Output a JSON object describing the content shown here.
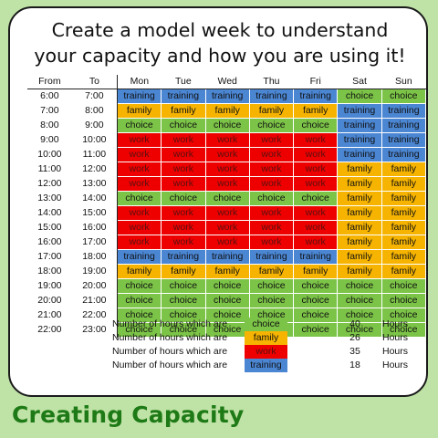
{
  "headline": {
    "line1": "Create a model week to understand",
    "line2": "your capacity and how you are using it!"
  },
  "table": {
    "headers": [
      "From",
      "To",
      "Mon",
      "Tue",
      "Wed",
      "Thu",
      "Fri",
      "Sat",
      "Sun"
    ],
    "rows": [
      {
        "from": "6:00",
        "to": "7:00",
        "days": [
          "training",
          "training",
          "training",
          "training",
          "training",
          "choice",
          "choice"
        ]
      },
      {
        "from": "7:00",
        "to": "8:00",
        "days": [
          "family",
          "family",
          "family",
          "family",
          "family",
          "training",
          "training"
        ]
      },
      {
        "from": "8:00",
        "to": "9:00",
        "days": [
          "choice",
          "choice",
          "choice",
          "choice",
          "choice",
          "training",
          "training"
        ]
      },
      {
        "from": "9:00",
        "to": "10:00",
        "days": [
          "work",
          "work",
          "work",
          "work",
          "work",
          "training",
          "training"
        ]
      },
      {
        "from": "10:00",
        "to": "11:00",
        "days": [
          "work",
          "work",
          "work",
          "work",
          "work",
          "training",
          "training"
        ]
      },
      {
        "from": "11:00",
        "to": "12:00",
        "days": [
          "work",
          "work",
          "work",
          "work",
          "work",
          "family",
          "family"
        ]
      },
      {
        "from": "12:00",
        "to": "13:00",
        "days": [
          "work",
          "work",
          "work",
          "work",
          "work",
          "family",
          "family"
        ]
      },
      {
        "from": "13:00",
        "to": "14:00",
        "days": [
          "choice",
          "choice",
          "choice",
          "choice",
          "choice",
          "family",
          "family"
        ]
      },
      {
        "from": "14:00",
        "to": "15:00",
        "days": [
          "work",
          "work",
          "work",
          "work",
          "work",
          "family",
          "family"
        ]
      },
      {
        "from": "15:00",
        "to": "16:00",
        "days": [
          "work",
          "work",
          "work",
          "work",
          "work",
          "family",
          "family"
        ]
      },
      {
        "from": "16:00",
        "to": "17:00",
        "days": [
          "work",
          "work",
          "work",
          "work",
          "work",
          "family",
          "family"
        ]
      },
      {
        "from": "17:00",
        "to": "18:00",
        "days": [
          "training",
          "training",
          "training",
          "training",
          "training",
          "family",
          "family"
        ]
      },
      {
        "from": "18:00",
        "to": "19:00",
        "days": [
          "family",
          "family",
          "family",
          "family",
          "family",
          "family",
          "family"
        ]
      },
      {
        "from": "19:00",
        "to": "20:00",
        "days": [
          "choice",
          "choice",
          "choice",
          "choice",
          "choice",
          "choice",
          "choice"
        ]
      },
      {
        "from": "20:00",
        "to": "21:00",
        "days": [
          "choice",
          "choice",
          "choice",
          "choice",
          "choice",
          "choice",
          "choice"
        ]
      },
      {
        "from": "21:00",
        "to": "22:00",
        "days": [
          "choice",
          "choice",
          "choice",
          "choice",
          "choice",
          "choice",
          "choice"
        ]
      },
      {
        "from": "22:00",
        "to": "23:00",
        "days": [
          "choice",
          "choice",
          "choice",
          "choice",
          "choice",
          "choice",
          "choice"
        ]
      }
    ]
  },
  "summary": [
    {
      "label": "Number of hours which are",
      "category": "choice",
      "count": "40",
      "unit": "Hours"
    },
    {
      "label": "Number of hours which are",
      "category": "family",
      "count": "26",
      "unit": "Hours"
    },
    {
      "label": "Number of hours which are",
      "category": "work",
      "count": "35",
      "unit": "Hours"
    },
    {
      "label": "Number of hours which are",
      "category": "training",
      "count": "18",
      "unit": "Hours"
    }
  ],
  "colors": {
    "choice": "#7cc447",
    "family": "#f6b400",
    "work": "#ee0000",
    "training": "#4b86d3",
    "background": "#bfe3a6",
    "footer_text": "#1e7a16"
  },
  "footer": {
    "title": "Creating Capacity"
  }
}
